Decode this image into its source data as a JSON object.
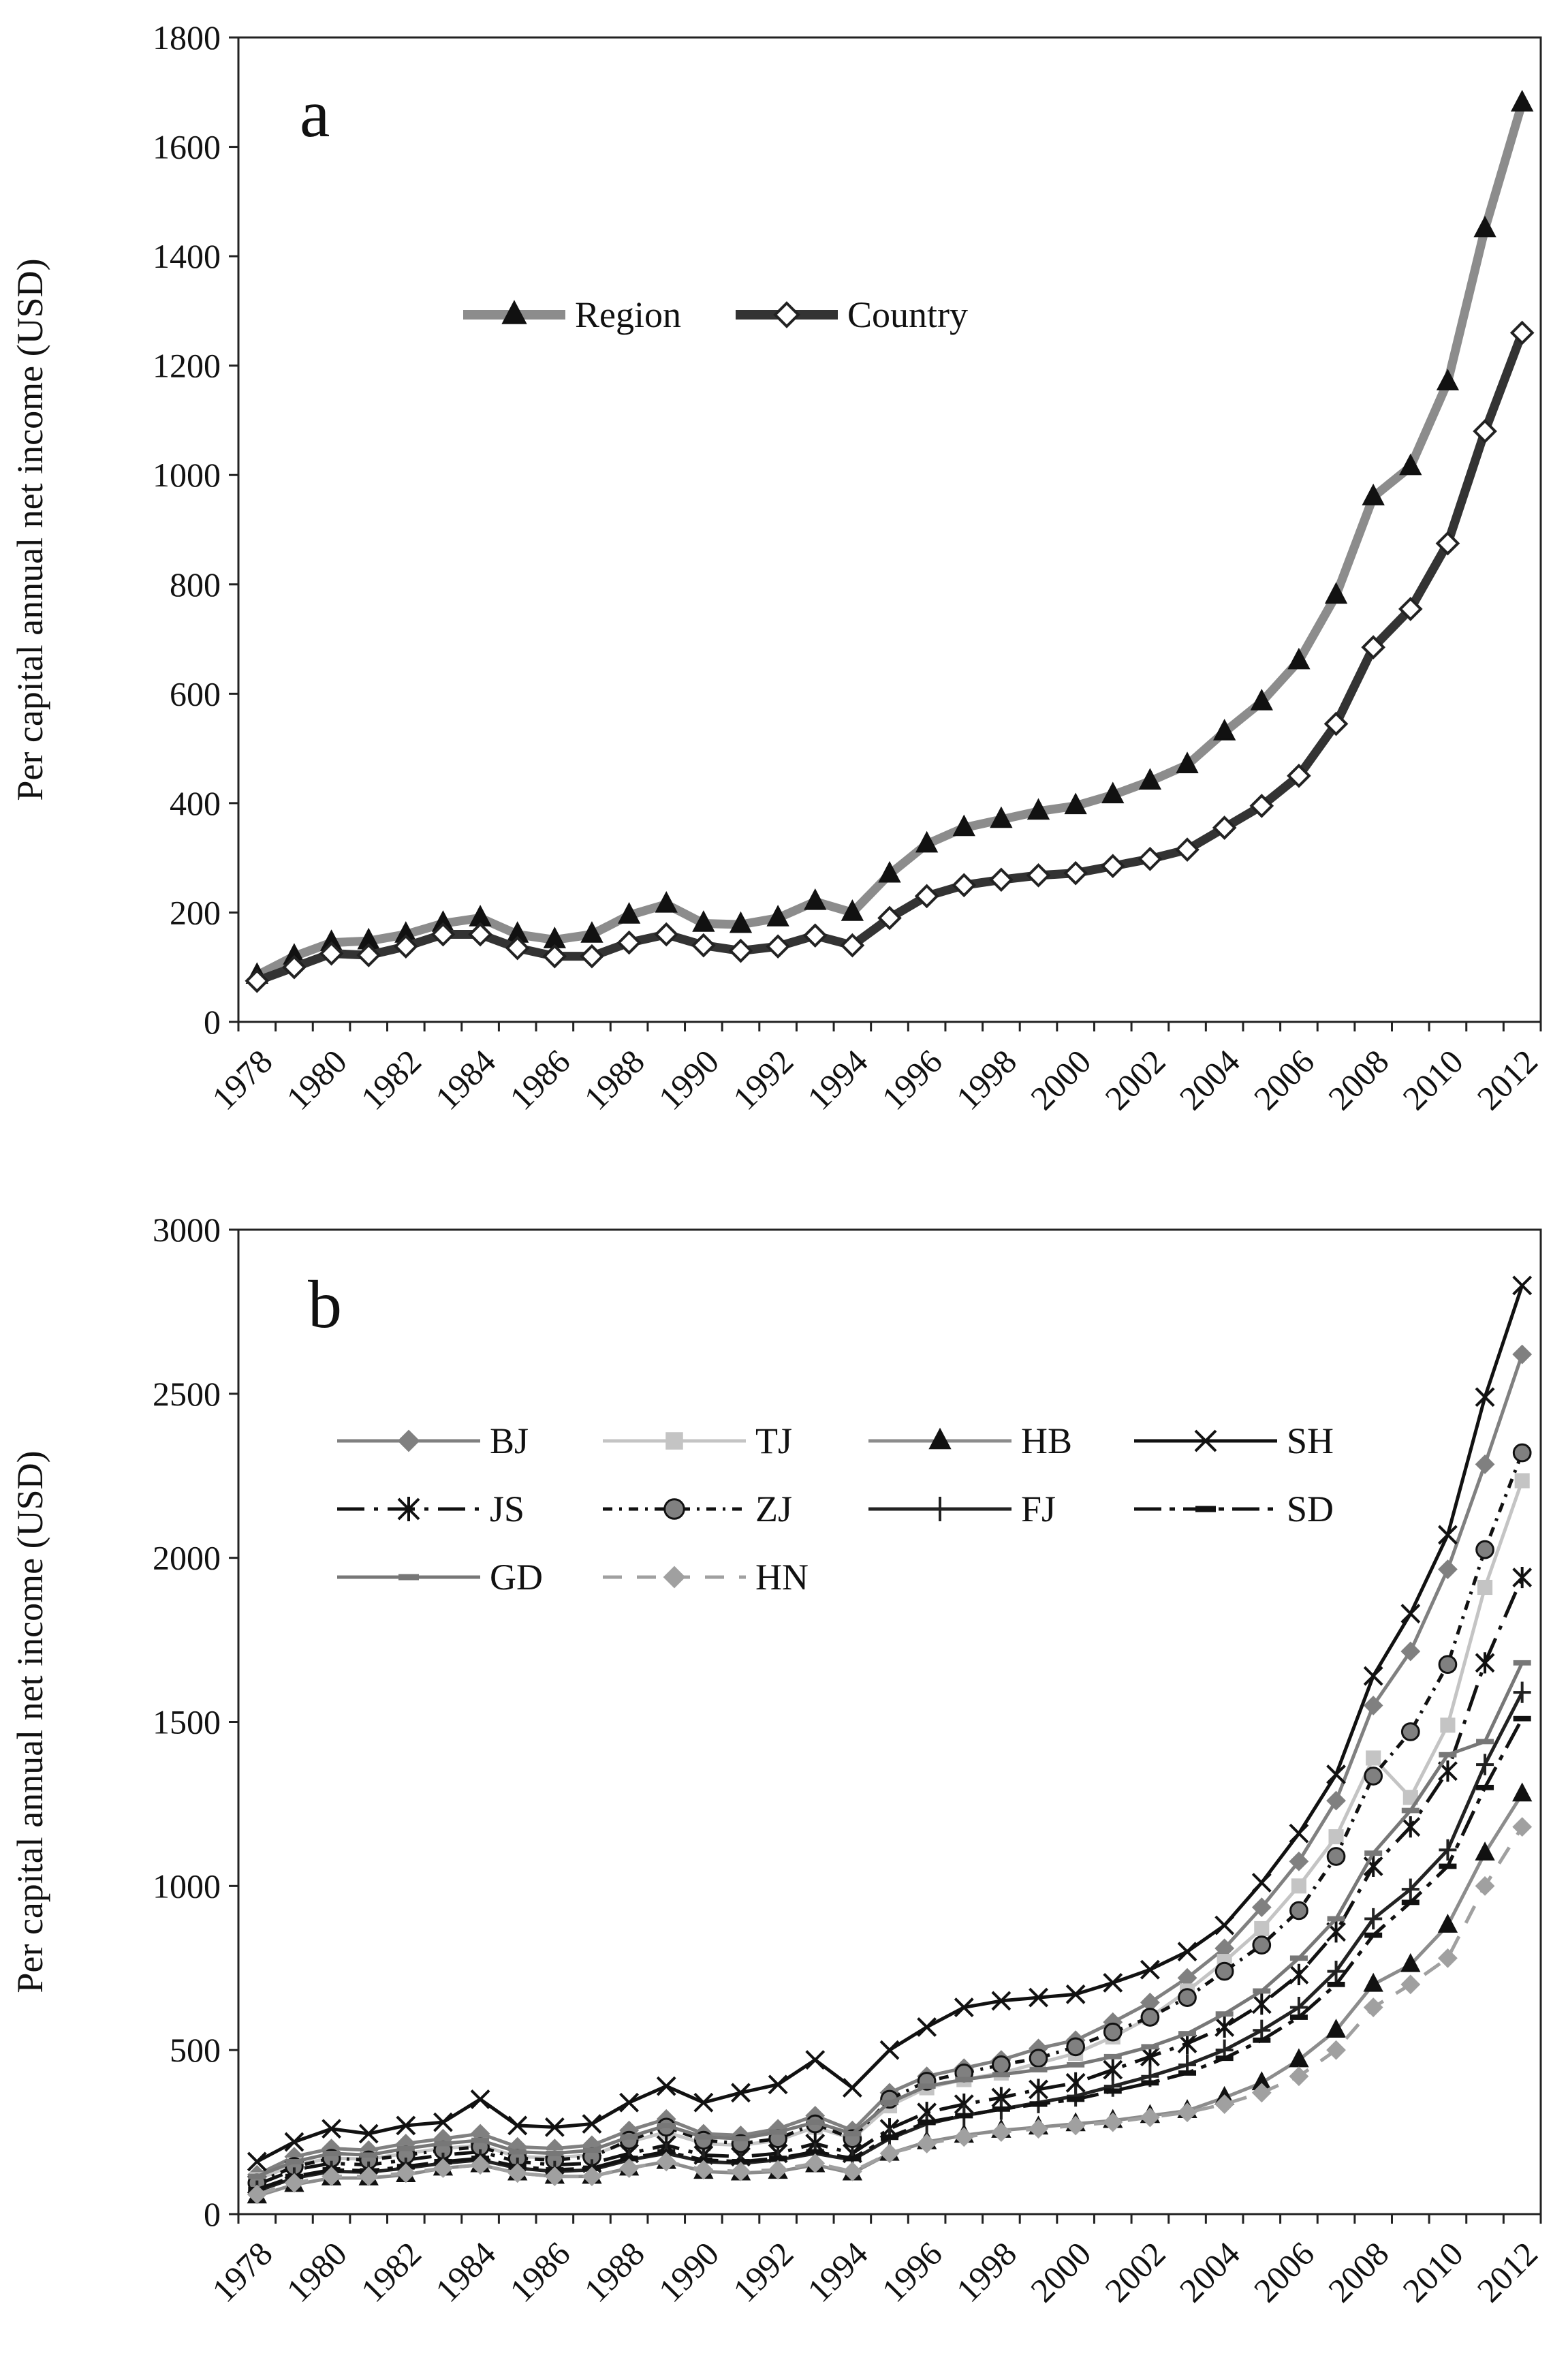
{
  "chart_data": [
    {
      "type": "line",
      "panel_label": "a",
      "title": "",
      "xlabel": "",
      "ylabel": "Per capital annual net income (USD)",
      "ylim": [
        0,
        1800
      ],
      "yticks": [
        0,
        200,
        400,
        600,
        800,
        1000,
        1200,
        1400,
        1600,
        1800
      ],
      "x": [
        1978,
        1979,
        1980,
        1981,
        1982,
        1983,
        1984,
        1985,
        1986,
        1987,
        1988,
        1989,
        1990,
        1991,
        1992,
        1993,
        1994,
        1995,
        1996,
        1997,
        1998,
        1999,
        2000,
        2001,
        2002,
        2003,
        2004,
        2005,
        2006,
        2007,
        2008,
        2009,
        2010,
        2011,
        2012
      ],
      "xticks": [
        "1978",
        "1980",
        "1982",
        "1984",
        "1986",
        "1988",
        "1990",
        "1992",
        "1994",
        "1996",
        "1998",
        "2000",
        "2002",
        "2004",
        "2006",
        "2008",
        "2010",
        "2012"
      ],
      "legend_position": "upper-left",
      "series": [
        {
          "name": "Region",
          "color": "#8c8c8c",
          "marker": "triangle",
          "values": [
            85,
            120,
            145,
            148,
            160,
            180,
            190,
            160,
            150,
            160,
            195,
            215,
            180,
            178,
            190,
            220,
            200,
            270,
            325,
            355,
            370,
            385,
            395,
            415,
            440,
            470,
            530,
            585,
            660,
            780,
            960,
            1015,
            1170,
            1450,
            1680
          ]
        },
        {
          "name": "Country",
          "color": "#333333",
          "marker": "diamond-open",
          "values": [
            75,
            100,
            125,
            122,
            138,
            160,
            160,
            135,
            120,
            120,
            145,
            160,
            140,
            130,
            138,
            158,
            140,
            190,
            230,
            250,
            260,
            268,
            272,
            285,
            298,
            315,
            355,
            395,
            450,
            545,
            685,
            755,
            875,
            1080,
            1260
          ]
        }
      ]
    },
    {
      "type": "line",
      "panel_label": "b",
      "title": "",
      "xlabel": "",
      "ylabel": "Per capital annual net income (USD)",
      "ylim": [
        0,
        3000
      ],
      "yticks": [
        0,
        500,
        1000,
        1500,
        2000,
        2500,
        3000
      ],
      "x": [
        1978,
        1979,
        1980,
        1981,
        1982,
        1983,
        1984,
        1985,
        1986,
        1987,
        1988,
        1989,
        1990,
        1991,
        1992,
        1993,
        1994,
        1995,
        1996,
        1997,
        1998,
        1999,
        2000,
        2001,
        2002,
        2003,
        2004,
        2005,
        2006,
        2007,
        2008,
        2009,
        2010,
        2011,
        2012
      ],
      "xticks": [
        "1978",
        "1980",
        "1982",
        "1984",
        "1986",
        "1988",
        "1990",
        "1992",
        "1994",
        "1996",
        "1998",
        "2000",
        "2002",
        "2004",
        "2006",
        "2008",
        "2010",
        "2012"
      ],
      "legend_position": "upper-left",
      "series": [
        {
          "name": "BJ",
          "color": "#808080",
          "marker": "diamond",
          "dash": "",
          "values": [
            120,
            175,
            200,
            195,
            215,
            230,
            245,
            205,
            200,
            210,
            255,
            290,
            245,
            240,
            260,
            300,
            255,
            370,
            420,
            445,
            470,
            505,
            530,
            585,
            645,
            720,
            810,
            935,
            1075,
            1260,
            1550,
            1715,
            1965,
            2285,
            2620
          ]
        },
        {
          "name": "TJ",
          "color": "#c4c4c4",
          "marker": "square",
          "dash": "",
          "values": [
            105,
            150,
            170,
            168,
            185,
            200,
            210,
            175,
            172,
            180,
            220,
            250,
            215,
            210,
            225,
            265,
            230,
            330,
            385,
            410,
            430,
            460,
            490,
            540,
            600,
            680,
            770,
            870,
            1000,
            1150,
            1390,
            1270,
            1490,
            1910,
            2235
          ]
        },
        {
          "name": "HB",
          "color": "#8c8c8c",
          "marker": "triangle",
          "dash": "",
          "values": [
            55,
            90,
            110,
            110,
            120,
            140,
            150,
            125,
            115,
            115,
            140,
            160,
            130,
            125,
            130,
            150,
            125,
            185,
            220,
            240,
            255,
            265,
            275,
            285,
            300,
            315,
            355,
            400,
            470,
            560,
            700,
            760,
            880,
            1100,
            1280
          ]
        },
        {
          "name": "SH",
          "color": "#111111",
          "marker": "x",
          "dash": "",
          "values": [
            160,
            220,
            260,
            245,
            270,
            280,
            350,
            270,
            265,
            275,
            340,
            390,
            340,
            370,
            395,
            470,
            385,
            500,
            570,
            630,
            650,
            660,
            670,
            705,
            745,
            800,
            880,
            1010,
            1160,
            1340,
            1640,
            1830,
            2070,
            2490,
            2830
          ]
        },
        {
          "name": "JS",
          "color": "#111111",
          "marker": "asterisk",
          "dash": "40,14,6,14",
          "values": [
            90,
            135,
            155,
            150,
            165,
            180,
            190,
            160,
            150,
            155,
            185,
            210,
            180,
            175,
            185,
            215,
            185,
            260,
            310,
            335,
            355,
            380,
            400,
            440,
            480,
            520,
            570,
            640,
            730,
            860,
            1060,
            1180,
            1350,
            1680,
            1940
          ]
        },
        {
          "name": "ZJ",
          "color": "#111111",
          "marker": "circle",
          "dash": "14,10,4,10",
          "values": [
            95,
            145,
            170,
            165,
            180,
            195,
            205,
            170,
            165,
            175,
            225,
            265,
            225,
            215,
            230,
            275,
            230,
            350,
            405,
            430,
            455,
            475,
            510,
            555,
            600,
            660,
            740,
            820,
            925,
            1090,
            1335,
            1470,
            1675,
            2025,
            2320
          ]
        },
        {
          "name": "FJ",
          "color": "#222222",
          "marker": "plus",
          "dash": "",
          "values": [
            70,
            110,
            130,
            128,
            140,
            155,
            165,
            140,
            130,
            135,
            165,
            185,
            160,
            155,
            165,
            185,
            165,
            230,
            275,
            300,
            320,
            340,
            360,
            390,
            420,
            455,
            500,
            560,
            630,
            740,
            900,
            990,
            1110,
            1370,
            1590
          ]
        },
        {
          "name": "SD",
          "color": "#111111",
          "marker": "dash-mark",
          "dash": "40,12,8,12",
          "values": [
            75,
            115,
            135,
            132,
            145,
            160,
            170,
            145,
            135,
            140,
            170,
            190,
            165,
            160,
            170,
            190,
            170,
            235,
            280,
            300,
            320,
            335,
            350,
            375,
            400,
            430,
            475,
            530,
            600,
            700,
            850,
            950,
            1060,
            1300,
            1510
          ]
        },
        {
          "name": "GD",
          "color": "#777777",
          "marker": "dash-mark",
          "dash": "",
          "values": [
            115,
            160,
            185,
            180,
            200,
            215,
            225,
            190,
            185,
            195,
            235,
            270,
            235,
            230,
            250,
            280,
            245,
            340,
            390,
            410,
            425,
            440,
            455,
            480,
            510,
            550,
            610,
            680,
            780,
            900,
            1100,
            1230,
            1400,
            1440,
            1680
          ]
        },
        {
          "name": "HN",
          "color": "#a0a0a0",
          "marker": "diamond",
          "dash": "28,22",
          "values": [
            60,
            95,
            115,
            115,
            125,
            140,
            150,
            125,
            115,
            115,
            140,
            160,
            135,
            130,
            135,
            155,
            130,
            185,
            215,
            235,
            250,
            260,
            270,
            280,
            295,
            310,
            335,
            370,
            420,
            500,
            630,
            700,
            780,
            1000,
            1180
          ]
        }
      ]
    }
  ]
}
